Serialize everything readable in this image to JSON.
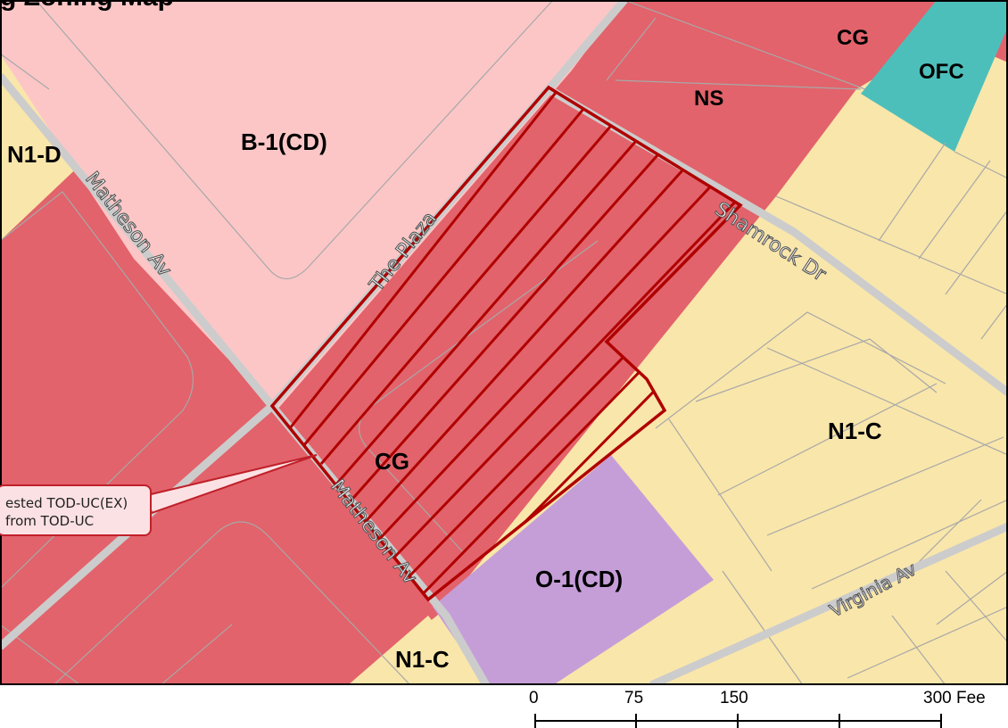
{
  "map": {
    "title": "g Zoning Map",
    "zones": {
      "b1cd": "B-1(CD)",
      "n1d": "N1-D",
      "cg_top": "CG",
      "ofc": "OFC",
      "ns": "NS",
      "cg_main": "CG",
      "n1c_right": "N1-C",
      "o1cd": "O-1(CD)",
      "n1c_bottom": "N1-C"
    },
    "streets": {
      "matheson_upper": "Matheson Av",
      "matheson_lower": "Matheson Av",
      "the_plaza": "The Plaza",
      "shamrock": "Shamrock Dr",
      "virginia": "Virginia Av"
    },
    "callout": {
      "line1": "ested TOD-UC(EX)",
      "line2": "from TOD-UC"
    },
    "colors": {
      "commercial_red": "#e2636b",
      "light_pink": "#fcc6c6",
      "residential_tan": "#f9e6aa",
      "office_teal": "#4dbfbb",
      "office_purple": "#c59ed8",
      "road_gray": "#cccccc",
      "site_outline": "#b00000"
    }
  },
  "scale_bar": {
    "labels": [
      "0",
      "75",
      "150",
      "300 Fee"
    ]
  }
}
